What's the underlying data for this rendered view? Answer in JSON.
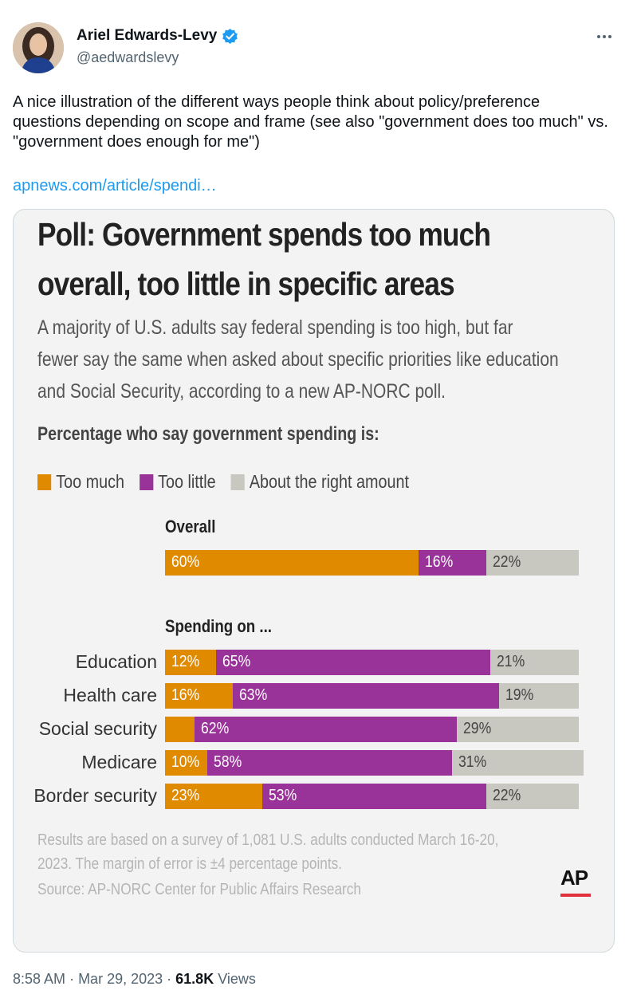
{
  "author": {
    "name": "Ariel Edwards-Levy",
    "handle": "@aedwardslevy"
  },
  "tweet": {
    "text": "A nice illustration of the different ways people think about policy/preference questions depending on scope and frame (see also \"government does too much\" vs. \"government does enough for me\")",
    "link": "apnews.com/article/spendi…"
  },
  "chart_data": {
    "type": "bar",
    "stacked": true,
    "orientation": "horizontal",
    "title_lines": [
      "Poll: Government spends too much",
      "overall, too little in specific areas"
    ],
    "subtitle_lines": [
      "A majority of U.S. adults say federal spending is too high, but far",
      "fewer say the same when asked about specific priorities like education",
      "and Social Security, according to a new AP-NORC poll."
    ],
    "question": "Percentage who say government spending is:",
    "legend": [
      {
        "name": "Too much",
        "color": "#e08a00"
      },
      {
        "name": "Too little",
        "color": "#993399"
      },
      {
        "name": "About the right amount",
        "color": "#c8c8c0"
      }
    ],
    "sections": [
      {
        "label": "Overall",
        "rows": [
          {
            "category": "",
            "values": [
              60,
              16,
              22
            ],
            "labels": [
              "60%",
              "16%",
              "22%"
            ]
          }
        ]
      },
      {
        "label": "Spending on ...",
        "rows": [
          {
            "category": "Education",
            "values": [
              12,
              65,
              21
            ],
            "labels": [
              "12%",
              "65%",
              "21%"
            ]
          },
          {
            "category": "Health care",
            "values": [
              16,
              63,
              19
            ],
            "labels": [
              "16%",
              "63%",
              "19%"
            ]
          },
          {
            "category": "Social security",
            "values": [
              7,
              62,
              29
            ],
            "labels": [
              "",
              "62%",
              "29%"
            ]
          },
          {
            "category": "Medicare",
            "values": [
              10,
              58,
              31
            ],
            "labels": [
              "10%",
              "58%",
              "31%"
            ]
          },
          {
            "category": "Border security",
            "values": [
              23,
              53,
              22
            ],
            "labels": [
              "23%",
              "53%",
              "22%"
            ]
          }
        ]
      }
    ],
    "note_lines": [
      "Results are based on a survey of 1,081 U.S. adults conducted March 16-20,",
      "2023. The margin of error is ±4 percentage points."
    ],
    "source": "Source: AP-NORC Center for Public Affairs Research",
    "logo": "AP"
  },
  "meta": {
    "time": "8:58 AM",
    "date": "Mar 29, 2023",
    "views_count": "61.8K",
    "views_label": "Views"
  }
}
